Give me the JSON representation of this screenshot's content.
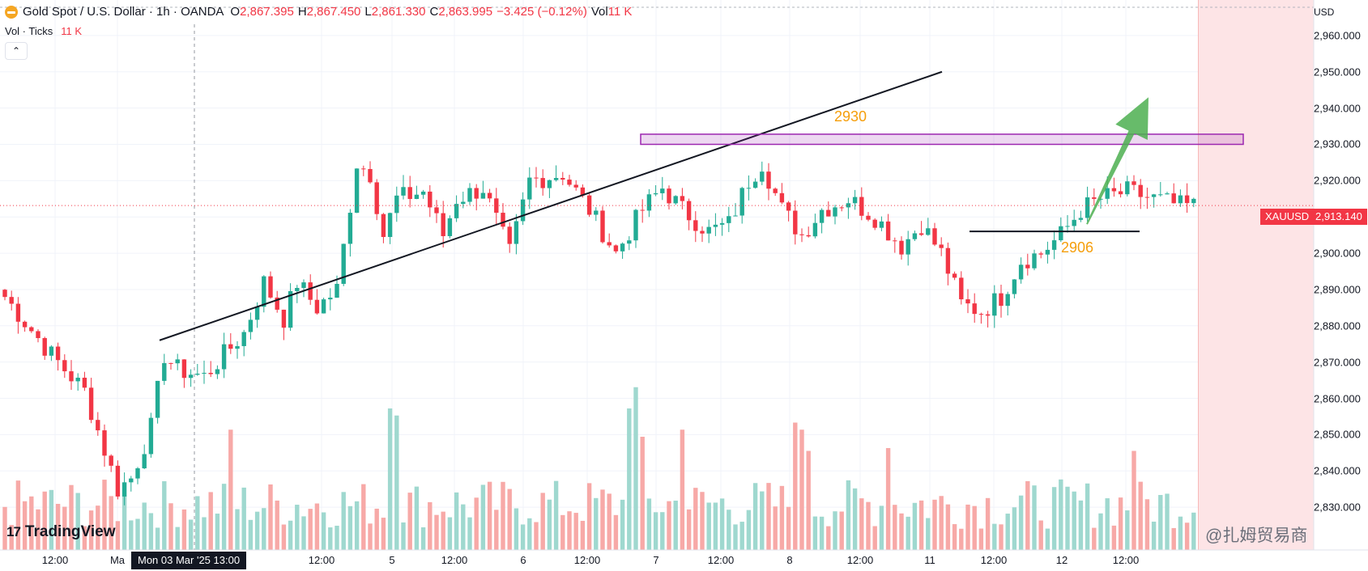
{
  "header": {
    "symbol": "Gold Spot / U.S. Dollar · 1h · OANDA",
    "open_key": "O",
    "open": "2,867.395",
    "high_key": "H",
    "high": "2,867.450",
    "low_key": "L",
    "low": "2,861.330",
    "close_key": "C",
    "close": "2,863.995",
    "change": "−3.425 (−0.12%)",
    "vol_key": "Vol",
    "vol": "11 K"
  },
  "indicator": {
    "label": "Vol · Ticks",
    "value": "11 K"
  },
  "currency": "USD",
  "price_label": {
    "symbol": "XAUUSD",
    "value": "2,913.140"
  },
  "crosshair_date": "Mon 03 Mar '25   13:00",
  "annotations": {
    "resistance": "2930",
    "support": "2906"
  },
  "brand": "TradingView",
  "watermark": "@扎姆贸易商",
  "colors": {
    "up": "#22ab94",
    "down": "#f23645",
    "vol_up": "#9fd8cf",
    "vol_down": "#f7a9a7",
    "zone": "#9c27b0",
    "arrow": "#4caf50",
    "projection": "#fde4e6"
  },
  "chart_data": {
    "type": "candlestick",
    "title": "",
    "ylim": [
      2820,
      2968
    ],
    "yticks": [
      2830,
      2840,
      2850,
      2860,
      2870,
      2880,
      2890,
      2900,
      2910,
      2920,
      2930,
      2940,
      2950,
      2960
    ],
    "ytick_labels": [
      "2,830.000",
      "2,840.000",
      "2,850.000",
      "2,860.000",
      "2,870.000",
      "2,880.000",
      "2,890.000",
      "2,900.000",
      "2,910.000",
      "2,920.000",
      "2,930.000",
      "2,940.000",
      "2,950.000",
      "2,960.000"
    ],
    "xtick_labels": [
      "12:00",
      "Ma",
      "12:00",
      "5",
      "12:00",
      "6",
      "12:00",
      "7",
      "12:00",
      "8",
      "12:00",
      "11",
      "12:00",
      "12",
      "12:00"
    ],
    "last_price": 2913.14,
    "levels": {
      "resistance": 2930,
      "support": 2906
    },
    "anchors": [
      {
        "i": 0,
        "p": 2888
      },
      {
        "i": 7,
        "p": 2872
      },
      {
        "i": 12,
        "p": 2862
      },
      {
        "i": 17,
        "p": 2835
      },
      {
        "i": 19,
        "p": 2838
      },
      {
        "i": 22,
        "p": 2852
      },
      {
        "i": 24,
        "p": 2872
      },
      {
        "i": 26,
        "p": 2868
      },
      {
        "i": 30,
        "p": 2866
      },
      {
        "i": 36,
        "p": 2878
      },
      {
        "i": 39,
        "p": 2892
      },
      {
        "i": 42,
        "p": 2882
      },
      {
        "i": 44,
        "p": 2892
      },
      {
        "i": 47,
        "p": 2885
      },
      {
        "i": 50,
        "p": 2890
      },
      {
        "i": 53,
        "p": 2925
      },
      {
        "i": 55,
        "p": 2922
      },
      {
        "i": 57,
        "p": 2905
      },
      {
        "i": 59,
        "p": 2915
      },
      {
        "i": 63,
        "p": 2917
      },
      {
        "i": 66,
        "p": 2905
      },
      {
        "i": 68,
        "p": 2915
      },
      {
        "i": 72,
        "p": 2918
      },
      {
        "i": 76,
        "p": 2900
      },
      {
        "i": 79,
        "p": 2920
      },
      {
        "i": 84,
        "p": 2922
      },
      {
        "i": 88,
        "p": 2912
      },
      {
        "i": 92,
        "p": 2900
      },
      {
        "i": 96,
        "p": 2912
      },
      {
        "i": 99,
        "p": 2918
      },
      {
        "i": 102,
        "p": 2912
      },
      {
        "i": 106,
        "p": 2906
      },
      {
        "i": 109,
        "p": 2908
      },
      {
        "i": 112,
        "p": 2920
      },
      {
        "i": 114,
        "p": 2925
      },
      {
        "i": 117,
        "p": 2912
      },
      {
        "i": 120,
        "p": 2905
      },
      {
        "i": 123,
        "p": 2912
      },
      {
        "i": 127,
        "p": 2915
      },
      {
        "i": 131,
        "p": 2910
      },
      {
        "i": 135,
        "p": 2902
      },
      {
        "i": 138,
        "p": 2908
      },
      {
        "i": 141,
        "p": 2900
      },
      {
        "i": 144,
        "p": 2886
      },
      {
        "i": 147,
        "p": 2884
      },
      {
        "i": 150,
        "p": 2888
      },
      {
        "i": 153,
        "p": 2898
      },
      {
        "i": 156,
        "p": 2900
      },
      {
        "i": 159,
        "p": 2905
      },
      {
        "i": 162,
        "p": 2912
      },
      {
        "i": 165,
        "p": 2915
      },
      {
        "i": 169,
        "p": 2917
      },
      {
        "i": 173,
        "p": 2915
      },
      {
        "i": 177,
        "p": 2913
      },
      {
        "i": 179,
        "p": 2913
      }
    ],
    "volume_high_bars": [
      {
        "i": 58,
        "v": 1.0
      },
      {
        "i": 59,
        "v": 0.95
      },
      {
        "i": 94,
        "v": 1.0
      },
      {
        "i": 95,
        "v": 1.15
      },
      {
        "i": 96,
        "v": 0.8
      },
      {
        "i": 119,
        "v": 0.9
      },
      {
        "i": 120,
        "v": 0.85
      },
      {
        "i": 121,
        "v": 0.7
      },
      {
        "i": 133,
        "v": 0.72
      },
      {
        "i": 34,
        "v": 0.85
      },
      {
        "i": 170,
        "v": 0.7
      },
      {
        "i": 102,
        "v": 0.85
      }
    ]
  }
}
